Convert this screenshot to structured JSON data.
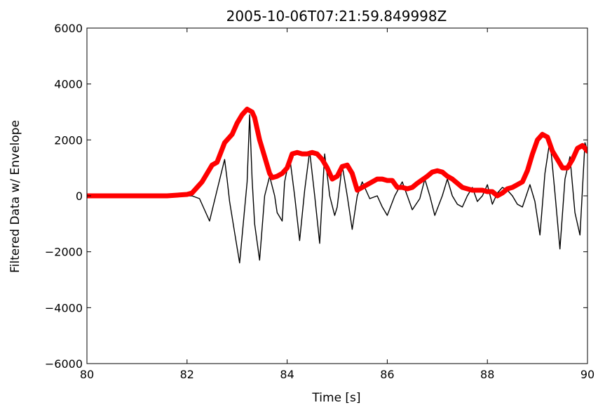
{
  "chart_data": {
    "type": "line",
    "title": "2005-10-06T07:21:59.849998Z",
    "xlabel": "Time [s]",
    "ylabel": "Filtered Data w/ Envelope",
    "xlim": [
      80,
      90
    ],
    "ylim": [
      -6000,
      6000
    ],
    "xticks": [
      80,
      82,
      84,
      86,
      88,
      90
    ],
    "yticks": [
      -6000,
      -4000,
      -2000,
      0,
      2000,
      4000,
      6000
    ],
    "xtick_labels": [
      "80",
      "82",
      "84",
      "86",
      "88",
      "90"
    ],
    "ytick_labels": [
      "−6000",
      "−4000",
      "−2000",
      "0",
      "2000",
      "4000",
      "6000"
    ],
    "grid": false,
    "series": [
      {
        "role": "filtered",
        "color": "#000000",
        "x": [
          80.0,
          81.7,
          82.0,
          82.1,
          82.25,
          82.45,
          82.6,
          82.75,
          82.8,
          82.85,
          82.95,
          83.05,
          83.2,
          83.25,
          83.3,
          83.35,
          83.45,
          83.55,
          83.65,
          83.75,
          83.8,
          83.9,
          83.95,
          84.05,
          84.15,
          84.25,
          84.35,
          84.45,
          84.55,
          84.65,
          84.75,
          84.85,
          84.95,
          85.0,
          85.1,
          85.2,
          85.3,
          85.4,
          85.5,
          85.65,
          85.8,
          85.9,
          86.0,
          86.15,
          86.3,
          86.4,
          86.5,
          86.65,
          86.75,
          86.85,
          86.95,
          87.1,
          87.2,
          87.3,
          87.4,
          87.5,
          87.6,
          87.7,
          87.8,
          87.9,
          88.0,
          88.1,
          88.2,
          88.3,
          88.4,
          88.5,
          88.6,
          88.7,
          88.85,
          88.95,
          89.05,
          89.15,
          89.25,
          89.35,
          89.45,
          89.55,
          89.65,
          89.75,
          89.85,
          89.95,
          90.0
        ],
        "y": [
          0,
          0,
          0,
          0,
          -100,
          -900,
          200,
          1300,
          600,
          -200,
          -1300,
          -2400,
          500,
          2900,
          600,
          -1000,
          -2300,
          0,
          700,
          0,
          -600,
          -900,
          500,
          1400,
          0,
          -1600,
          200,
          1600,
          0,
          -1700,
          1500,
          0,
          -700,
          -400,
          1100,
          0,
          -1200,
          0,
          500,
          -100,
          0,
          -400,
          -700,
          0,
          500,
          0,
          -500,
          -100,
          600,
          0,
          -700,
          0,
          600,
          0,
          -300,
          -400,
          0,
          300,
          -200,
          0,
          400,
          -300,
          100,
          300,
          200,
          0,
          -300,
          -400,
          400,
          -200,
          -1400,
          800,
          2000,
          100,
          -1900,
          600,
          1400,
          -600,
          -1400,
          1900,
          1600
        ]
      },
      {
        "role": "envelope",
        "color": "#ff0000",
        "x": [
          80.0,
          81.6,
          82.0,
          82.1,
          82.3,
          82.5,
          82.6,
          82.75,
          82.9,
          83.0,
          83.1,
          83.2,
          83.3,
          83.35,
          83.45,
          83.55,
          83.65,
          83.7,
          83.8,
          83.9,
          84.0,
          84.1,
          84.2,
          84.3,
          84.4,
          84.5,
          84.6,
          84.7,
          84.8,
          84.9,
          85.0,
          85.1,
          85.2,
          85.3,
          85.4,
          85.5,
          85.6,
          85.7,
          85.8,
          85.9,
          86.0,
          86.1,
          86.2,
          86.3,
          86.4,
          86.5,
          86.6,
          86.8,
          86.9,
          87.0,
          87.1,
          87.2,
          87.3,
          87.4,
          87.5,
          87.6,
          87.7,
          87.8,
          87.9,
          88.0,
          88.1,
          88.2,
          88.3,
          88.4,
          88.5,
          88.6,
          88.7,
          88.8,
          88.9,
          89.0,
          89.1,
          89.2,
          89.3,
          89.4,
          89.5,
          89.6,
          89.7,
          89.8,
          89.9,
          90.0
        ],
        "y": [
          0,
          0,
          50,
          100,
          500,
          1100,
          1200,
          1900,
          2200,
          2600,
          2900,
          3100,
          3000,
          2800,
          2000,
          1400,
          800,
          650,
          700,
          800,
          1000,
          1500,
          1550,
          1500,
          1500,
          1550,
          1500,
          1300,
          1000,
          600,
          700,
          1050,
          1100,
          800,
          200,
          300,
          400,
          500,
          600,
          600,
          550,
          550,
          300,
          300,
          250,
          300,
          450,
          700,
          850,
          900,
          850,
          700,
          600,
          450,
          300,
          250,
          200,
          200,
          200,
          150,
          150,
          0,
          100,
          250,
          300,
          400,
          500,
          900,
          1500,
          2000,
          2200,
          2100,
          1600,
          1300,
          1000,
          1000,
          1300,
          1700,
          1800,
          1600
        ]
      }
    ]
  }
}
